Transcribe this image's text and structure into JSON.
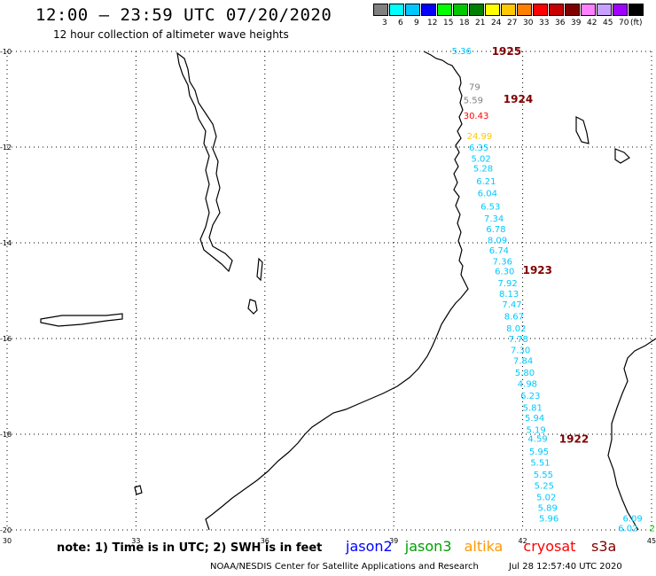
{
  "header": {
    "title": "12:00 – 23:59 UTC 07/20/2020",
    "subtitle": "12 hour collection of altimeter wave heights"
  },
  "legend": {
    "unit": "(ft)",
    "bins": [
      {
        "color": "#808080",
        "label": "3"
      },
      {
        "color": "#00ffff",
        "label": "6"
      },
      {
        "color": "#00c8ff",
        "label": "9"
      },
      {
        "color": "#0000ff",
        "label": "12"
      },
      {
        "color": "#00ff00",
        "label": "15"
      },
      {
        "color": "#00c800",
        "label": "18"
      },
      {
        "color": "#008000",
        "label": "21"
      },
      {
        "color": "#ffff00",
        "label": "24"
      },
      {
        "color": "#ffc800",
        "label": "27"
      },
      {
        "color": "#ff8000",
        "label": "30"
      },
      {
        "color": "#ff0000",
        "label": "33"
      },
      {
        "color": "#c80000",
        "label": "36"
      },
      {
        "color": "#800000",
        "label": "39"
      },
      {
        "color": "#ff80ff",
        "label": "42"
      },
      {
        "color": "#c8a0ff",
        "label": "45"
      },
      {
        "color": "#a000ff",
        "label": "70"
      },
      {
        "color": "#000000",
        "label": ""
      }
    ]
  },
  "map": {
    "lat_range": [
      -20,
      -10
    ],
    "lon_range": [
      30,
      45
    ],
    "lat_ticks": [
      "-10",
      "-12",
      "-14",
      "-16",
      "-18",
      "-20"
    ],
    "lon_ticks": [
      "30",
      "33",
      "36",
      "39",
      "42",
      "45"
    ],
    "grid": "dotted",
    "track_labels": [
      {
        "text": "1925",
        "lat": -10.0,
        "lon": 41.28,
        "color": "#800000"
      },
      {
        "text": "1924",
        "lat": -11.0,
        "lon": 41.55,
        "color": "#800000"
      },
      {
        "text": "1923",
        "lat": -14.57,
        "lon": 42.0,
        "color": "#800000"
      },
      {
        "text": "1922",
        "lat": -18.1,
        "lon": 42.85,
        "color": "#800000"
      }
    ],
    "measurements": [
      {
        "text": "5.36",
        "lat": -10.0,
        "lon": 40.35,
        "color": "#00c8ff"
      },
      {
        "text": "79",
        "lat": -10.75,
        "lon": 40.75,
        "color": "#808080"
      },
      {
        "text": "5.59",
        "lat": -11.03,
        "lon": 40.62,
        "color": "#808080"
      },
      {
        "text": "30.43",
        "lat": -11.35,
        "lon": 40.62,
        "color": "#ff0000"
      },
      {
        "text": "24.99",
        "lat": -11.78,
        "lon": 40.7,
        "color": "#ffc800"
      },
      {
        "text": "6.35",
        "lat": -12.02,
        "lon": 40.75,
        "color": "#00c8ff"
      },
      {
        "text": "5.02",
        "lat": -12.25,
        "lon": 40.8,
        "color": "#00c8ff"
      },
      {
        "text": "5.28",
        "lat": -12.45,
        "lon": 40.85,
        "color": "#00c8ff"
      },
      {
        "text": "6.21",
        "lat": -12.72,
        "lon": 40.92,
        "color": "#00c8ff"
      },
      {
        "text": "6.04",
        "lat": -12.97,
        "lon": 40.95,
        "color": "#00c8ff"
      },
      {
        "text": "6.53",
        "lat": -13.25,
        "lon": 41.02,
        "color": "#00c8ff"
      },
      {
        "text": "7.34",
        "lat": -13.5,
        "lon": 41.1,
        "color": "#00c8ff"
      },
      {
        "text": "6.78",
        "lat": -13.72,
        "lon": 41.15,
        "color": "#00c8ff"
      },
      {
        "text": "8.09",
        "lat": -13.95,
        "lon": 41.18,
        "color": "#00c8ff"
      },
      {
        "text": "6.74",
        "lat": -14.17,
        "lon": 41.22,
        "color": "#00c8ff"
      },
      {
        "text": "7.36",
        "lat": -14.4,
        "lon": 41.3,
        "color": "#00c8ff"
      },
      {
        "text": "6.30",
        "lat": -14.6,
        "lon": 41.35,
        "color": "#00c8ff"
      },
      {
        "text": "7.92",
        "lat": -14.85,
        "lon": 41.42,
        "color": "#00c8ff"
      },
      {
        "text": "8.13",
        "lat": -15.07,
        "lon": 41.45,
        "color": "#00c8ff"
      },
      {
        "text": "7.47",
        "lat": -15.3,
        "lon": 41.52,
        "color": "#00c8ff"
      },
      {
        "text": "8.67",
        "lat": -15.55,
        "lon": 41.57,
        "color": "#00c8ff"
      },
      {
        "text": "8.02",
        "lat": -15.8,
        "lon": 41.62,
        "color": "#00c8ff"
      },
      {
        "text": "7.78",
        "lat": -16.02,
        "lon": 41.67,
        "color": "#00c8ff"
      },
      {
        "text": "7.30",
        "lat": -16.25,
        "lon": 41.72,
        "color": "#00c8ff"
      },
      {
        "text": "7.84",
        "lat": -16.47,
        "lon": 41.78,
        "color": "#00c8ff"
      },
      {
        "text": "5.80",
        "lat": -16.72,
        "lon": 41.82,
        "color": "#00c8ff"
      },
      {
        "text": "4.98",
        "lat": -16.95,
        "lon": 41.88,
        "color": "#00c8ff"
      },
      {
        "text": "6.23",
        "lat": -17.2,
        "lon": 41.95,
        "color": "#00c8ff"
      },
      {
        "text": "5.81",
        "lat": -17.45,
        "lon": 42.0,
        "color": "#00c8ff"
      },
      {
        "text": "5.94",
        "lat": -17.67,
        "lon": 42.05,
        "color": "#00c8ff"
      },
      {
        "text": "5.19",
        "lat": -17.92,
        "lon": 42.08,
        "color": "#00c8ff"
      },
      {
        "text": "4.59",
        "lat": -18.1,
        "lon": 42.12,
        "color": "#00c8ff"
      },
      {
        "text": "5.95",
        "lat": -18.37,
        "lon": 42.15,
        "color": "#00c8ff"
      },
      {
        "text": "5.51",
        "lat": -18.6,
        "lon": 42.18,
        "color": "#00c8ff"
      },
      {
        "text": "5.55",
        "lat": -18.85,
        "lon": 42.25,
        "color": "#00c8ff"
      },
      {
        "text": "5.25",
        "lat": -19.08,
        "lon": 42.27,
        "color": "#00c8ff"
      },
      {
        "text": "5.02",
        "lat": -19.32,
        "lon": 42.32,
        "color": "#00c8ff"
      },
      {
        "text": "5.89",
        "lat": -19.55,
        "lon": 42.35,
        "color": "#00c8ff"
      },
      {
        "text": "5.96",
        "lat": -19.77,
        "lon": 42.38,
        "color": "#00c8ff"
      },
      {
        "text": "6.09",
        "lat": -19.77,
        "lon": 44.33,
        "color": "#00c8ff"
      },
      {
        "text": "6.02",
        "lat": -19.97,
        "lon": 44.22,
        "color": "#00c8ff"
      },
      {
        "text": "2",
        "lat": -19.97,
        "lon": 44.95,
        "color": "#00c800"
      }
    ]
  },
  "note": "note:  1) Time is in UTC;  2) SWH is in feet",
  "missions": [
    {
      "label": "jason2",
      "color": "#0000ff"
    },
    {
      "label": "jason3",
      "color": "#00a000"
    },
    {
      "label": "altika",
      "color": "#ff9900"
    },
    {
      "label": "cryosat",
      "color": "#ff0000"
    },
    {
      "label": "s3a",
      "color": "#800000"
    }
  ],
  "footer": {
    "credit": "NOAA/NESDIS Center for Satellite Applications and Research",
    "timestamp": "Jul 28 12:57:40 UTC 2020"
  }
}
